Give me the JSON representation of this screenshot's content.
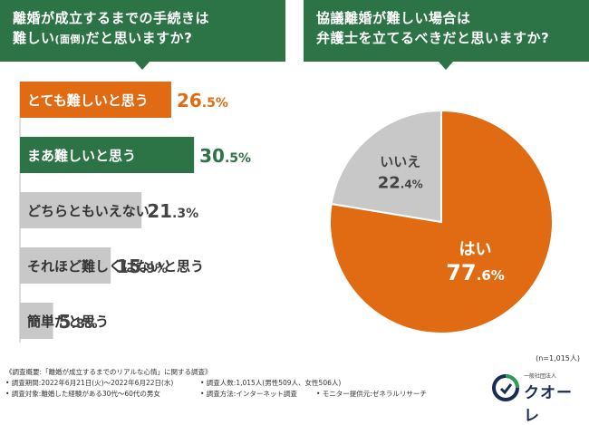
{
  "left_header": {
    "line1": "離婚が成立するまでの手続きは",
    "line2_main": "難しい",
    "line2_paren": "(面倒)",
    "line2_tail": "だと思いますか?"
  },
  "right_header": {
    "line1": "協議離婚が難しい場合は",
    "line2": "弁護士を立てるべきだと思いますか?"
  },
  "colors": {
    "header_green": "#2c7345",
    "orange": "#e06b12",
    "green": "#2c7345",
    "gray": "#c8c8c8",
    "dark_text": "#444444"
  },
  "chart_data": [
    {
      "type": "bar",
      "orientation": "horizontal",
      "categories": [
        "とても難しいと思う",
        "まあ難しいと思う",
        "どちらともいえない",
        "それほど難しくはないと思う",
        "簡単だと思う"
      ],
      "values": [
        26.5,
        30.5,
        21.3,
        15.9,
        5.8
      ],
      "value_labels": [
        [
          "26",
          ".5%"
        ],
        [
          "30",
          ".5%"
        ],
        [
          "21",
          ".3%"
        ],
        [
          "15",
          ".9%"
        ],
        [
          "5",
          ".8%"
        ]
      ],
      "bar_colors": [
        "#e06b12",
        "#2c7345",
        "#c8c8c8",
        "#c8c8c8",
        "#c8c8c8"
      ],
      "label_colors": [
        "#ffffff",
        "#ffffff",
        "#333333",
        "#333333",
        "#333333"
      ],
      "value_colors": [
        "#e06b12",
        "#2c7345",
        "#444444",
        "#444444",
        "#444444"
      ]
    },
    {
      "type": "pie",
      "labels": [
        "はい",
        "いいえ"
      ],
      "values": [
        77.6,
        22.4
      ],
      "value_labels": [
        [
          "77",
          ".6%"
        ],
        [
          "22",
          ".4%"
        ]
      ],
      "colors": [
        "#e06b12",
        "#c8c8c8"
      ]
    }
  ],
  "n_note": "(n=1,015人)",
  "footer": {
    "overview": "《調査概要:「離婚が成立するまでのリアルな心情」に関する調査》",
    "period": "• 調査期間:2022年6月21日(火)〜2022年6月22日(水)",
    "people": "• 調査人数:1,015人(男性509人、女性506人)",
    "target": "• 調査対象:離婚した経験がある30代〜60代の男女",
    "method": "• 調査方法:インターネット調査",
    "monitor": "• モニター提供元:ゼネラルリサーチ"
  },
  "logo": {
    "small": "一般社団法人",
    "name": "クオーレ"
  }
}
